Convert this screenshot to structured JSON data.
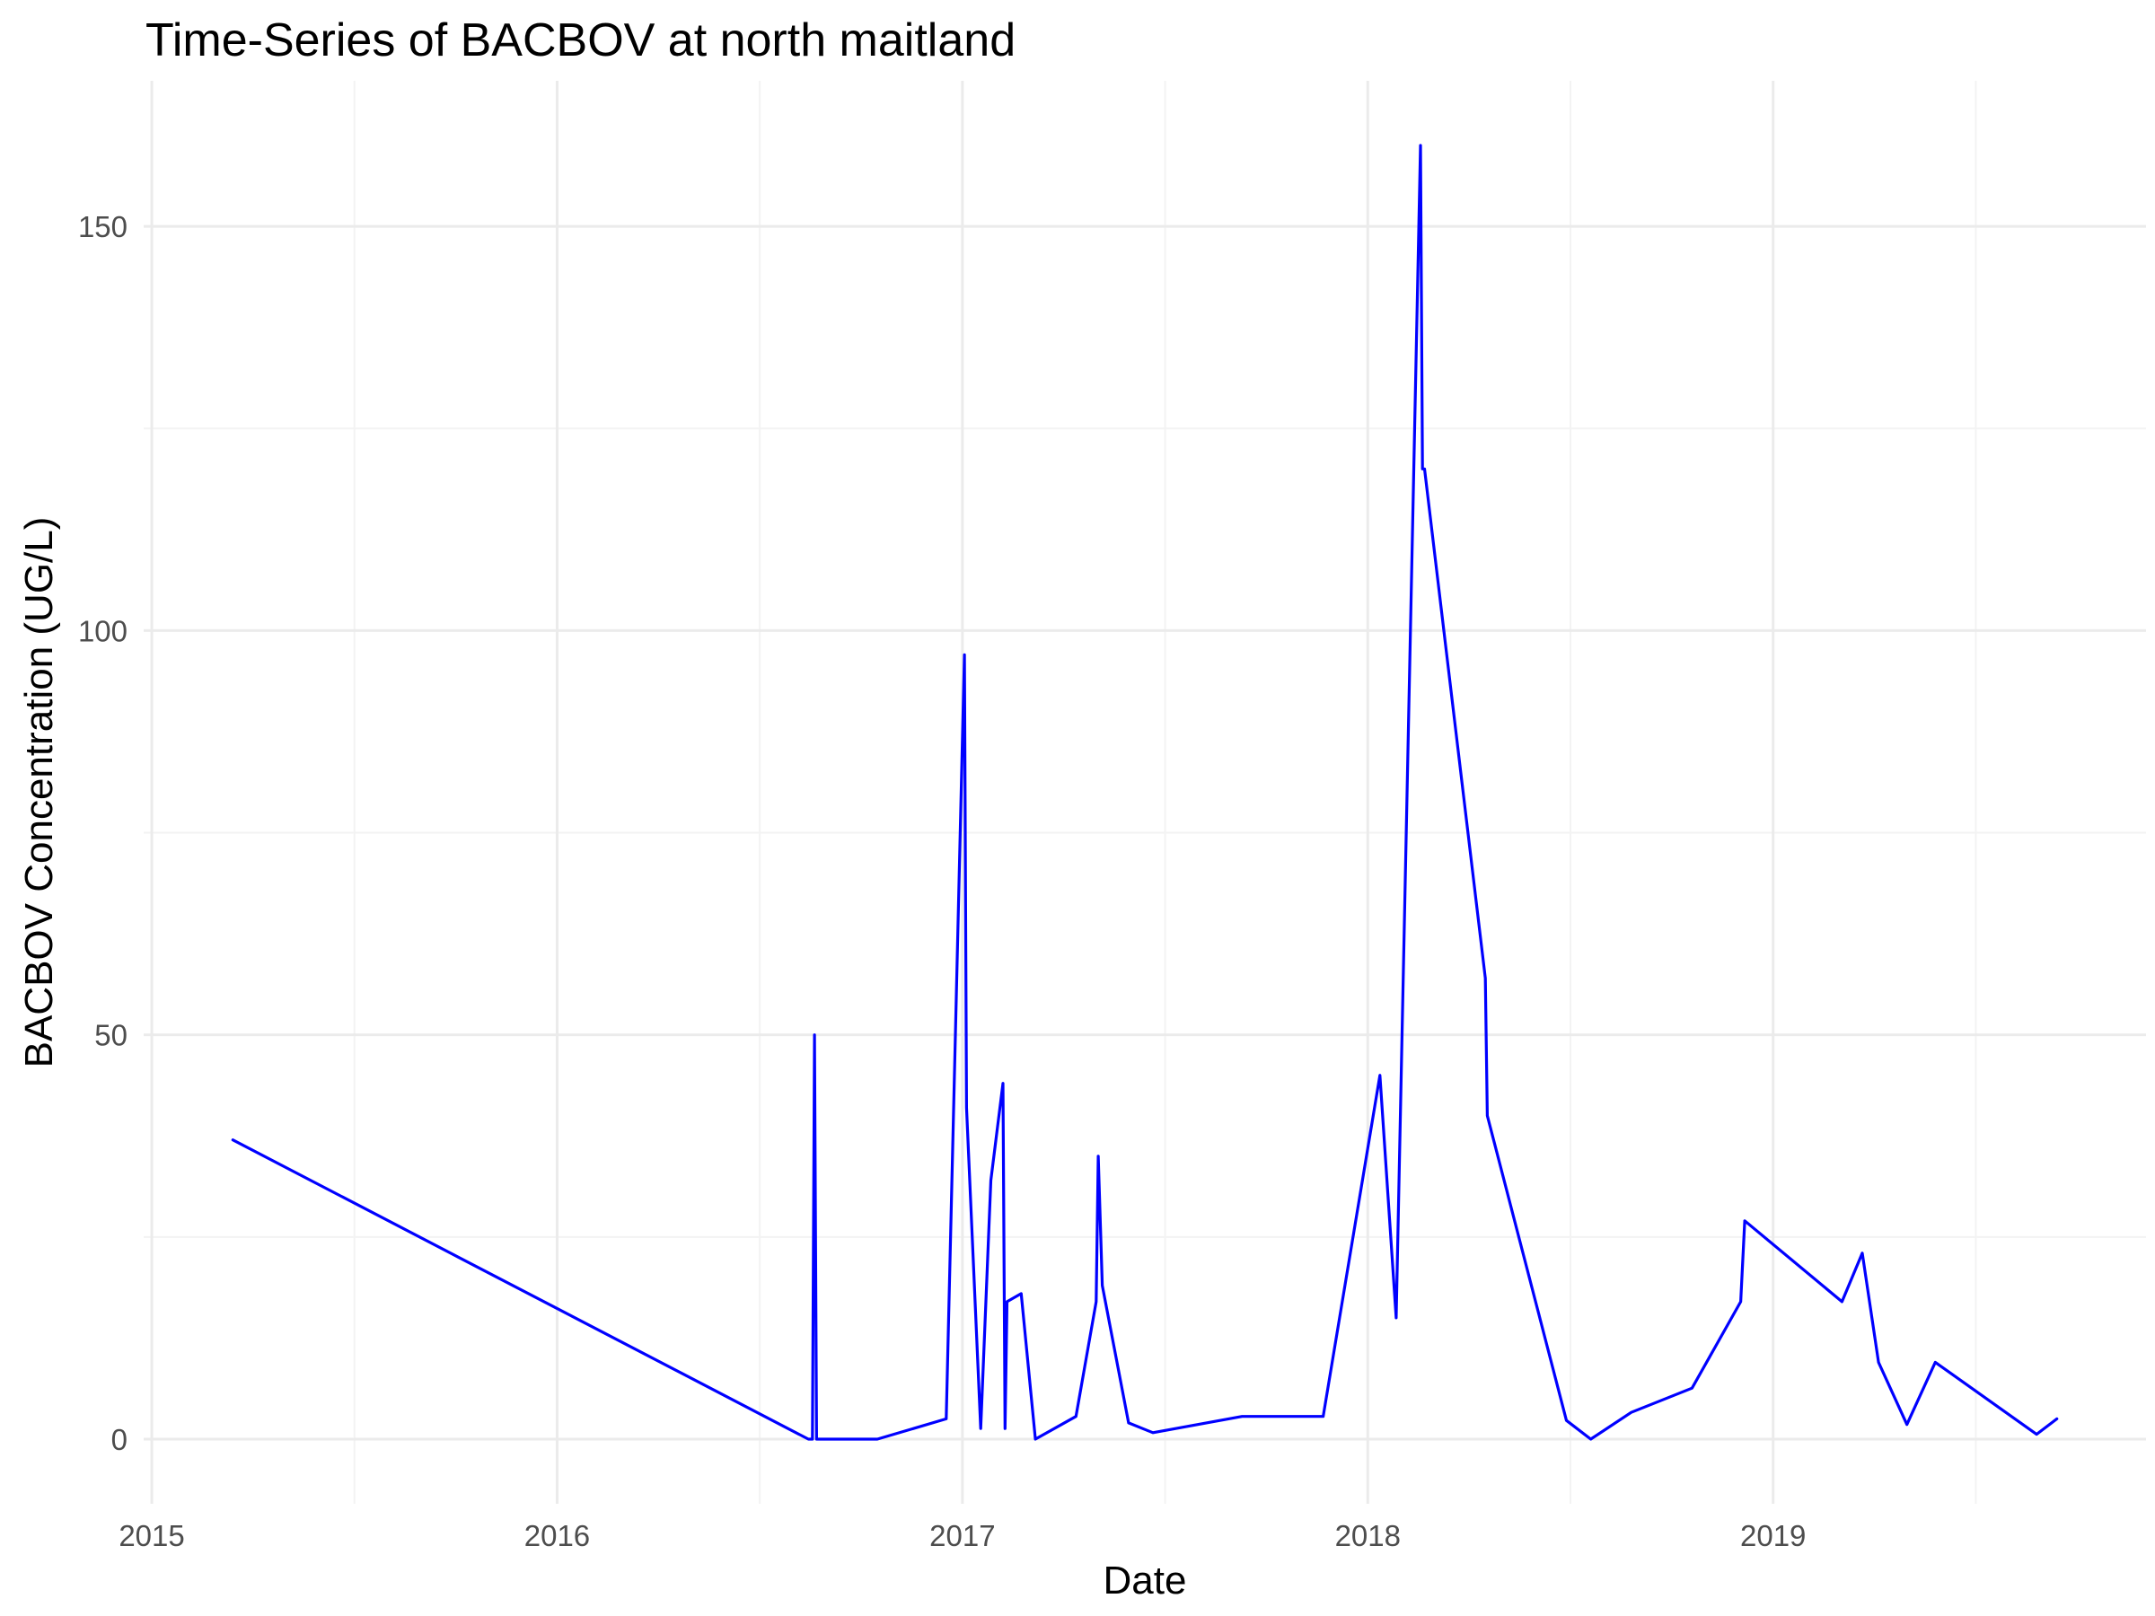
{
  "chart_data": {
    "type": "line",
    "title": "Time-Series of BACBOV at north maitland",
    "xlabel": "Date",
    "ylabel": "BACBOV Concentration (UG/L)",
    "x_ticks": [
      2015,
      2016,
      2017,
      2018,
      2019
    ],
    "y_ticks": [
      0,
      50,
      100,
      150
    ],
    "xlim": [
      2014.98,
      2019.92
    ],
    "ylim": [
      -8,
      168
    ],
    "grid": true,
    "legend": "none",
    "series": [
      {
        "color": "#0000ff",
        "x": [
          2015.2,
          2016.62,
          2016.63,
          2016.635,
          2016.64,
          2016.79,
          2016.96,
          2017.005,
          2017.01,
          2017.045,
          2017.07,
          2017.1,
          2017.105,
          2017.11,
          2017.145,
          2017.18,
          2017.28,
          2017.33,
          2017.335,
          2017.345,
          2017.41,
          2017.47,
          2017.69,
          2017.89,
          2018.03,
          2018.07,
          2018.13,
          2018.135,
          2018.14,
          2018.29,
          2018.295,
          2018.49,
          2018.55,
          2018.65,
          2018.8,
          2018.92,
          2018.93,
          2019.17,
          2019.22,
          2019.26,
          2019.33,
          2019.4,
          2019.65,
          2019.7
        ],
        "y": [
          37,
          0,
          0,
          50,
          0,
          0,
          2.5,
          97,
          41,
          1.3,
          32,
          44,
          1.3,
          17,
          18,
          0,
          2.8,
          17,
          35,
          19,
          2,
          0.8,
          2.8,
          2.8,
          45,
          15,
          160,
          120,
          120,
          57,
          40,
          2.3,
          0,
          3.3,
          6.3,
          17,
          27,
          17,
          23,
          9.5,
          1.8,
          9.5,
          0.6,
          2.5
        ]
      }
    ]
  }
}
